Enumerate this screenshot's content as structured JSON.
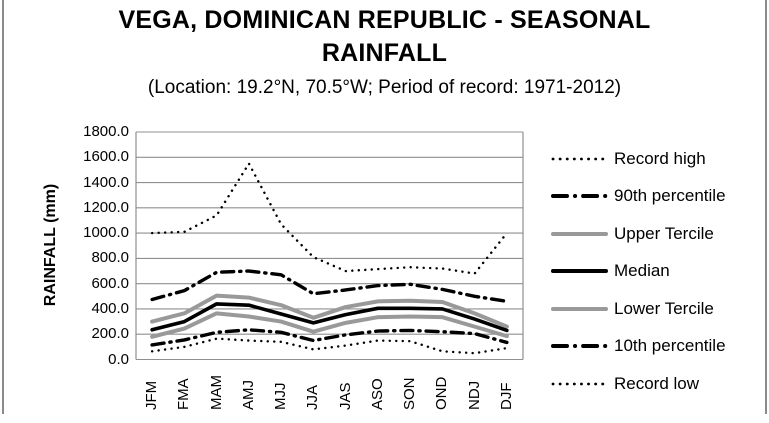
{
  "window": {
    "background": "#ffffff",
    "frame_border_color": "#8a8a8a"
  },
  "header": {
    "title_line1": "VEGA, DOMINICAN REPUBLIC - SEASONAL",
    "title_line2": "RAINFALL",
    "subtitle": "(Location: 19.2°N, 70.5°W; Period of record: 1971-2012)"
  },
  "colors": {
    "grid": "#8f8f8f",
    "axis": "#8f8f8f",
    "black_series": "#000000",
    "gray_series": "#999999",
    "text": "#000000"
  },
  "chart_data": {
    "type": "line",
    "title": "VEGA, DOMINICAN REPUBLIC - SEASONAL RAINFALL",
    "subtitle": "(Location: 19.2°N, 70.5°W; Period of record: 1971-2012)",
    "xlabel": "",
    "ylabel": "RAINFALL (mm)",
    "ylim": [
      0,
      1800
    ],
    "y_tick_step": 200,
    "y_ticks": [
      0,
      200,
      400,
      600,
      800,
      1000,
      1200,
      1400,
      1600,
      1800
    ],
    "y_tick_decimals": 1,
    "grid": true,
    "legend_position": "right",
    "categories": [
      "JFM",
      "FMA",
      "MAM",
      "AMJ",
      "MJJ",
      "JJA",
      "JAS",
      "ASO",
      "SON",
      "OND",
      "NDJ",
      "DJF"
    ],
    "series": [
      {
        "name": "Record high",
        "style": "dotted",
        "color": "#000000",
        "values": [
          1000,
          1010,
          1140,
          1550,
          1070,
          810,
          700,
          715,
          730,
          720,
          680,
          1000
        ]
      },
      {
        "name": "90th percentile",
        "style": "dash-dot",
        "color": "#000000",
        "values": [
          475,
          545,
          690,
          700,
          670,
          520,
          550,
          585,
          595,
          555,
          500,
          460
        ]
      },
      {
        "name": "Upper Tercile",
        "style": "solid",
        "color": "#999999",
        "values": [
          300,
          365,
          505,
          490,
          430,
          330,
          415,
          460,
          465,
          455,
          365,
          260
        ]
      },
      {
        "name": "Median",
        "style": "solid",
        "color": "#000000",
        "values": [
          235,
          300,
          440,
          430,
          360,
          290,
          355,
          405,
          405,
          400,
          320,
          230
        ]
      },
      {
        "name": "Lower Tercile",
        "style": "solid",
        "color": "#999999",
        "values": [
          180,
          245,
          365,
          340,
          300,
          220,
          290,
          335,
          340,
          335,
          260,
          185
        ]
      },
      {
        "name": "10th percentile",
        "style": "dash-dot",
        "color": "#000000",
        "values": [
          115,
          155,
          215,
          235,
          215,
          150,
          195,
          225,
          230,
          220,
          205,
          135
        ]
      },
      {
        "name": "Record low",
        "style": "dotted",
        "color": "#000000",
        "values": [
          65,
          100,
          165,
          150,
          140,
          80,
          110,
          150,
          145,
          65,
          50,
          90
        ]
      }
    ]
  }
}
